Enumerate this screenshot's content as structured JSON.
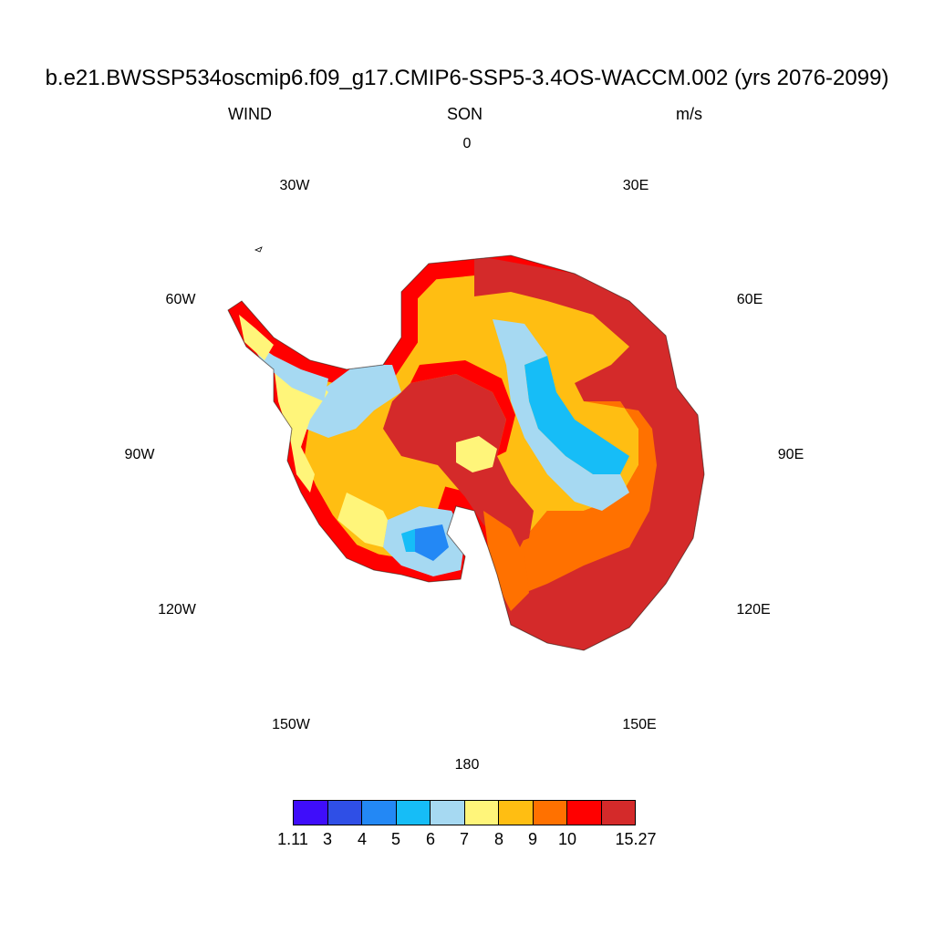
{
  "title": "b.e21.BWSSP534oscmip6.f09_g17.CMIP6-SSP5-3.4OS-WACCM.002 (yrs 2076-2099)",
  "variable": "WIND",
  "season": "SON",
  "units": "m/s",
  "longitude_labels": {
    "top": "0",
    "e30": "30E",
    "e60": "60E",
    "e90": "90E",
    "e120": "120E",
    "e150": "150E",
    "bottom": "180",
    "w150": "150W",
    "w120": "120W",
    "w90": "90W",
    "w60": "60W",
    "w30": "30W"
  },
  "colorbar": {
    "colors": [
      "#3f0dfa",
      "#2f4fe6",
      "#2388f5",
      "#16bdf7",
      "#a6d9f2",
      "#fff57a",
      "#ffbe12",
      "#ff7100",
      "#ff0000",
      "#d42a2a"
    ],
    "labels": [
      "1.11",
      "3",
      "4",
      "5",
      "6",
      "7",
      "8",
      "9",
      "10",
      "15.27"
    ]
  },
  "map_fields": {
    "projection": "south polar stereographic",
    "region": "Antarctica",
    "color_levels": [
      1.11,
      3,
      4,
      5,
      6,
      7,
      8,
      9,
      10,
      15.27
    ]
  }
}
